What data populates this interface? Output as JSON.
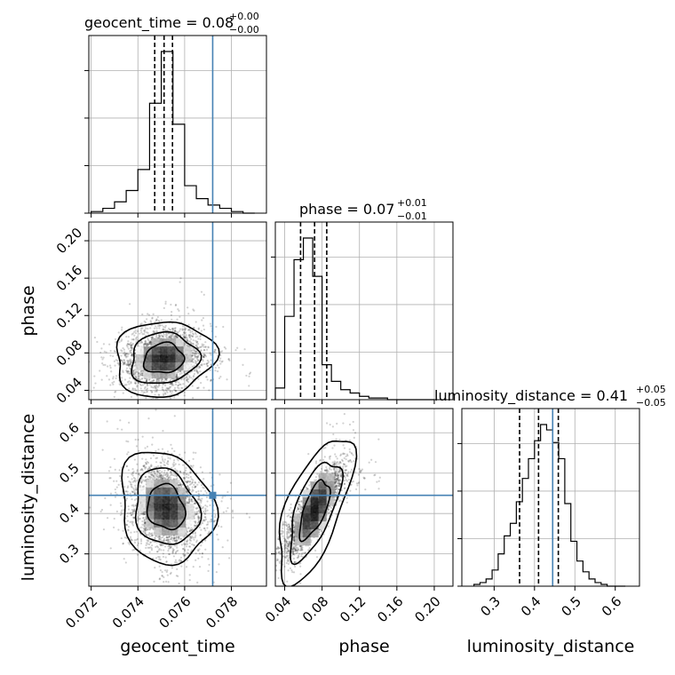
{
  "chart_data": {
    "type": "corner",
    "parameters": [
      "geocent_time",
      "phase",
      "luminosity_distance"
    ],
    "truth_color": "#4682b4",
    "truths": {
      "geocent_time": 0.0772,
      "phase": null,
      "luminosity_distance": 0.445
    },
    "marginals": [
      {
        "param": "geocent_time",
        "title_prefix": "geocent_time = 0.08",
        "title_plus": "+0.00",
        "title_minus": "−0.00",
        "quantiles": [
          0.07472,
          0.07512,
          0.07548
        ],
        "bin_edges": [
          0.072,
          0.0725,
          0.073,
          0.0735,
          0.074,
          0.0745,
          0.075,
          0.0755,
          0.076,
          0.0765,
          0.077,
          0.0775,
          0.078,
          0.0785,
          0.079
        ],
        "counts": [
          1,
          3,
          7,
          14,
          27,
          68,
          100,
          55,
          17,
          9,
          5,
          3,
          1,
          0
        ],
        "xlim": [
          0.0719,
          0.0795
        ],
        "xticks": [
          0.072,
          0.074,
          0.076,
          0.078
        ],
        "xtick_labels": [
          "0.072",
          "0.074",
          "0.076",
          "0.078"
        ],
        "xlabel": "geocent_time"
      },
      {
        "param": "phase",
        "title_prefix": "phase = 0.07",
        "title_plus": "+0.01",
        "title_minus": "−0.01",
        "quantiles": [
          0.057,
          0.072,
          0.085
        ],
        "bin_edges": [
          0.03,
          0.04,
          0.05,
          0.06,
          0.07,
          0.08,
          0.09,
          0.1,
          0.11,
          0.12,
          0.13,
          0.14,
          0.15,
          0.16,
          0.17,
          0.18,
          0.19,
          0.2
        ],
        "counts": [
          7,
          50,
          84,
          97,
          74,
          21,
          11,
          6,
          4,
          2,
          1,
          1,
          0,
          0,
          0,
          0,
          0
        ],
        "xlim": [
          0.03,
          0.22
        ],
        "xticks": [
          0.04,
          0.08,
          0.12,
          0.16,
          0.2
        ],
        "xtick_labels": [
          "0.04",
          "0.08",
          "0.12",
          "0.16",
          "0.20"
        ],
        "xlabel": "phase"
      },
      {
        "param": "luminosity_distance",
        "title_prefix": "luminosity_distance = 0.41",
        "title_plus": "+0.05",
        "title_minus": "−0.05",
        "quantiles": [
          0.363,
          0.41,
          0.459
        ],
        "bin_edges": [
          0.25,
          0.265,
          0.28,
          0.295,
          0.31,
          0.325,
          0.34,
          0.355,
          0.37,
          0.385,
          0.4,
          0.415,
          0.43,
          0.445,
          0.46,
          0.475,
          0.49,
          0.505,
          0.52,
          0.535,
          0.55,
          0.565,
          0.58,
          0.595,
          0.61,
          0.625
        ],
        "counts": [
          1,
          2,
          4,
          9,
          18,
          28,
          35,
          47,
          60,
          71,
          81,
          90,
          87,
          80,
          71,
          46,
          25,
          14,
          8,
          4,
          2,
          1,
          0,
          0,
          0
        ],
        "xlim": [
          0.22,
          0.66
        ],
        "xticks": [
          0.3,
          0.4,
          0.5,
          0.6
        ],
        "xtick_labels": [
          "0.3",
          "0.4",
          "0.5",
          "0.6"
        ],
        "xlabel": "luminosity_distance"
      }
    ],
    "y_axes": {
      "phase": {
        "ylim": [
          0.03,
          0.22
        ],
        "yticks": [
          0.04,
          0.08,
          0.12,
          0.16,
          0.2
        ],
        "ytick_labels": [
          "0.04",
          "0.08",
          "0.12",
          "0.16",
          "0.20"
        ],
        "ylabel": "phase"
      },
      "luminosity_distance": {
        "ylim": [
          0.22,
          0.66
        ],
        "yticks": [
          0.3,
          0.4,
          0.5,
          0.6
        ],
        "ytick_labels": [
          "0.3",
          "0.4",
          "0.5",
          "0.6"
        ],
        "ylabel": "luminosity_distance"
      }
    },
    "joint_2d": [
      {
        "x": "geocent_time",
        "y": "phase",
        "center": [
          0.0751,
          0.074
        ],
        "spread": [
          0.00085,
          0.016
        ],
        "corr": 0.1
      },
      {
        "x": "geocent_time",
        "y": "luminosity_distance",
        "center": [
          0.0752,
          0.415
        ],
        "spread": [
          0.0008,
          0.055
        ],
        "corr": -0.15
      },
      {
        "x": "phase",
        "y": "luminosity_distance",
        "center": [
          0.072,
          0.41
        ],
        "spread": [
          0.016,
          0.055
        ],
        "corr": 0.85
      }
    ],
    "grid": true
  }
}
